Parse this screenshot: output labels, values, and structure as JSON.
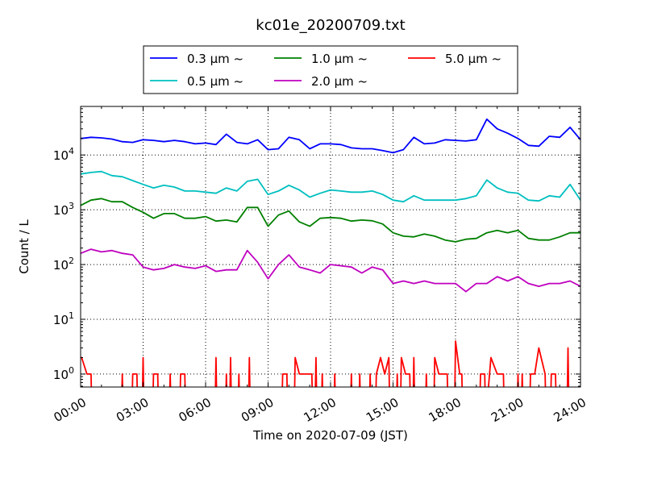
{
  "chart_data": {
    "type": "line",
    "title": "kc01e_20200709.txt",
    "xlabel": "Time on 2020-07-09 (JST)",
    "ylabel": "Count / L",
    "xlim": [
      0,
      24
    ],
    "ylim": [
      0.58,
      77000
    ],
    "yscale": "log",
    "grid": true,
    "legend_placement": "top-center",
    "xticks": [
      0,
      3,
      6,
      9,
      12,
      15,
      18,
      21,
      24
    ],
    "xtick_labels": [
      "00:00",
      "03:00",
      "06:00",
      "09:00",
      "12:00",
      "15:00",
      "18:00",
      "21:00",
      "24:00"
    ],
    "yticks": [
      1,
      10,
      100,
      1000,
      10000
    ],
    "ytick_labels": [
      {
        "base": "10",
        "exp": "0"
      },
      {
        "base": "10",
        "exp": "1"
      },
      {
        "base": "10",
        "exp": "2"
      },
      {
        "base": "10",
        "exp": "3"
      },
      {
        "base": "10",
        "exp": "4"
      }
    ],
    "x": [
      0,
      0.5,
      1,
      1.5,
      2,
      2.5,
      3,
      3.5,
      4,
      4.5,
      5,
      5.5,
      6,
      6.5,
      7,
      7.5,
      8,
      8.5,
      9,
      9.5,
      10,
      10.5,
      11,
      11.5,
      12,
      12.5,
      13,
      13.5,
      14,
      14.5,
      15,
      15.5,
      16,
      16.5,
      17,
      17.5,
      18,
      18.5,
      19,
      19.5,
      20,
      20.5,
      21,
      21.5,
      22,
      22.5,
      23,
      23.5,
      24
    ],
    "series": [
      {
        "name": "0.3 μm ~",
        "color": "#0000ff",
        "values": [
          20000,
          21000,
          20500,
          19500,
          17500,
          17000,
          19000,
          18500,
          17500,
          18500,
          17500,
          16000,
          16500,
          15500,
          24000,
          17000,
          16000,
          19000,
          12500,
          13000,
          21000,
          19000,
          13000,
          16000,
          16000,
          15500,
          13500,
          13000,
          13000,
          12000,
          11000,
          12500,
          21000,
          16000,
          16500,
          19000,
          18500,
          18000,
          19000,
          45000,
          30000,
          25000,
          20000,
          15000,
          14500,
          22000,
          21000,
          32000,
          19000
        ]
      },
      {
        "name": "0.5 μm ~",
        "color": "#00bfbf",
        "values": [
          4500,
          4800,
          5000,
          4200,
          4000,
          3400,
          2900,
          2500,
          2800,
          2600,
          2200,
          2200,
          2100,
          2000,
          2500,
          2200,
          3300,
          3600,
          1900,
          2200,
          2800,
          2300,
          1700,
          2000,
          2300,
          2200,
          2100,
          2100,
          2200,
          1900,
          1500,
          1400,
          1800,
          1500,
          1500,
          1500,
          1500,
          1600,
          1800,
          3500,
          2500,
          2100,
          2000,
          1500,
          1450,
          1800,
          1700,
          2900,
          1500
        ]
      },
      {
        "name": "1.0 μm ~",
        "color": "#008000",
        "values": [
          1200,
          1500,
          1600,
          1400,
          1400,
          1100,
          900,
          700,
          850,
          850,
          700,
          700,
          750,
          620,
          650,
          600,
          1100,
          1100,
          500,
          800,
          950,
          600,
          500,
          700,
          720,
          700,
          620,
          650,
          630,
          550,
          380,
          330,
          320,
          360,
          330,
          280,
          260,
          290,
          300,
          380,
          420,
          380,
          420,
          300,
          280,
          280,
          320,
          380,
          380
        ]
      },
      {
        "name": "2.0 μm ~",
        "color": "#bf00bf",
        "values": [
          160,
          190,
          170,
          180,
          160,
          150,
          90,
          80,
          85,
          100,
          90,
          85,
          95,
          75,
          80,
          80,
          180,
          110,
          55,
          100,
          150,
          90,
          80,
          70,
          100,
          95,
          90,
          70,
          90,
          80,
          45,
          50,
          45,
          50,
          45,
          45,
          45,
          32,
          45,
          45,
          60,
          50,
          60,
          45,
          40,
          45,
          45,
          50,
          40
        ]
      },
      {
        "name": "5.0 μm ~",
        "color": "#ff0000",
        "x": [
          0,
          0.05,
          0.3,
          0.5,
          0.55,
          1.95,
          2.0,
          2.05,
          2.45,
          2.5,
          2.7,
          2.75,
          2.95,
          3.0,
          3.05,
          3.45,
          3.5,
          3.7,
          3.75,
          4.25,
          4.3,
          4.35,
          4.75,
          4.8,
          5.0,
          5.05,
          6.45,
          6.5,
          6.55,
          6.95,
          7.0,
          7.05,
          7.15,
          7.2,
          7.25,
          7.55,
          7.6,
          7.65,
          8.05,
          8.1,
          8.15,
          9.65,
          9.7,
          9.9,
          9.95,
          10.25,
          10.3,
          10.5,
          11.1,
          11.15,
          11.25,
          11.3,
          11.35,
          11.55,
          11.6,
          11.65,
          12.15,
          12.2,
          12.25,
          12.95,
          13.0,
          13.05,
          13.35,
          13.4,
          13.45,
          13.85,
          13.9,
          13.95,
          14.15,
          14.2,
          14.4,
          14.6,
          14.8,
          14.85,
          15.15,
          15.2,
          15.25,
          15.35,
          15.4,
          15.6,
          15.8,
          15.85,
          15.95,
          16.0,
          16.05,
          16.55,
          16.6,
          16.65,
          16.95,
          17.0,
          17.2,
          17.6,
          17.65,
          17.95,
          18.0,
          18.2,
          18.3,
          18.35,
          19.15,
          19.2,
          19.4,
          19.45,
          19.7,
          20.0,
          20.3,
          20.35,
          20.95,
          21.0,
          21.05,
          21.15,
          21.2,
          21.25,
          21.55,
          21.6,
          21.8,
          22.0,
          22.3,
          22.35,
          22.55,
          22.6,
          22.8,
          22.85,
          23.35,
          23.4,
          23.45,
          24
        ],
        "values": [
          2,
          2,
          1,
          1,
          0,
          0,
          1,
          0,
          0,
          1,
          1,
          0,
          0,
          2,
          0,
          0,
          1,
          1,
          0,
          0,
          1,
          0,
          0,
          1,
          1,
          0,
          0,
          2,
          0,
          0,
          1,
          0,
          0,
          2,
          0,
          0,
          1,
          0,
          0,
          2,
          0,
          0,
          1,
          1,
          0,
          0,
          2,
          1,
          1,
          0,
          0,
          2,
          0,
          0,
          1,
          0,
          0,
          1,
          0,
          0,
          1,
          0,
          0,
          1,
          0,
          0,
          1,
          0,
          0,
          1,
          2,
          1,
          2,
          0,
          0,
          1,
          0,
          0,
          2,
          1,
          1,
          0,
          0,
          2,
          0,
          0,
          1,
          0,
          0,
          2,
          1,
          1,
          0,
          0,
          4,
          1,
          1,
          0,
          0,
          1,
          1,
          0,
          2,
          1,
          1,
          0,
          0,
          1,
          0,
          0,
          1,
          0,
          0,
          1,
          1,
          3,
          1,
          0,
          0,
          1,
          1,
          0,
          0,
          3,
          0,
          0
        ]
      }
    ]
  }
}
